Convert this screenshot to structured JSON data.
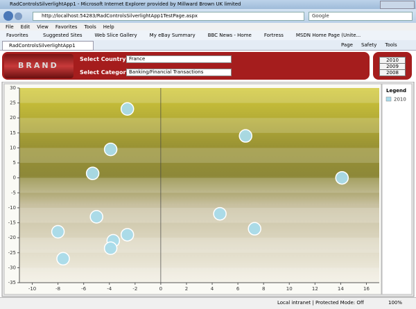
{
  "browser": {
    "window_title": "RadControlsSilverlightApp1 - Microsoft Internet Explorer provided by Millward Brown UK limited",
    "address": "http://localhost:54283/RadControlsSilverlightApp1TestPage.aspx",
    "search": "Google",
    "menu": [
      "File",
      "Edit",
      "View",
      "Favorites",
      "Tools",
      "Help"
    ],
    "favorites_label": "Favorites",
    "favorites": [
      "Suggested Sites",
      "Web Slice Gallery",
      "My eBay Summary",
      "BBC News - Home",
      "Fortress",
      "MSDN Home Page (Unite..."
    ],
    "tab": "RadControlsSilverlightApp1",
    "toolbar": [
      "Page",
      "Safety",
      "Tools"
    ],
    "status": "Local intranet | Protected Mode: Off",
    "zoom": "100%"
  },
  "app": {
    "logo": "BRAND",
    "country_label": "Select Country",
    "country": "France",
    "category_label": "Select Category",
    "category": "Banking/Financial Transactions",
    "years": [
      "2010",
      "2009",
      "2008"
    ]
  },
  "chart_data": {
    "type": "scatter",
    "legend_title": "Legend",
    "series": [
      {
        "name": "2010",
        "color": "#a9dbea",
        "x": [
          -2.6,
          -3.9,
          -5.3,
          6.6,
          14.1,
          -5.0,
          4.6,
          7.3,
          -8.0,
          -2.6,
          -3.7,
          -3.9,
          -7.6
        ],
        "values": [
          23,
          9.5,
          1.5,
          14,
          0,
          -13,
          -12,
          -17,
          -18,
          -19,
          -21,
          -23.5,
          -27
        ]
      }
    ],
    "xlim": [
      -11,
      17
    ],
    "xticks": [
      -10,
      -8,
      -6,
      -4,
      -2,
      0,
      2,
      4,
      6,
      8,
      10,
      12,
      14,
      16
    ],
    "ylim": [
      -35,
      30
    ],
    "yticks": [
      -35,
      -30,
      -25,
      -20,
      -15,
      -10,
      -5,
      0,
      5,
      10,
      15,
      20,
      25,
      30
    ]
  }
}
